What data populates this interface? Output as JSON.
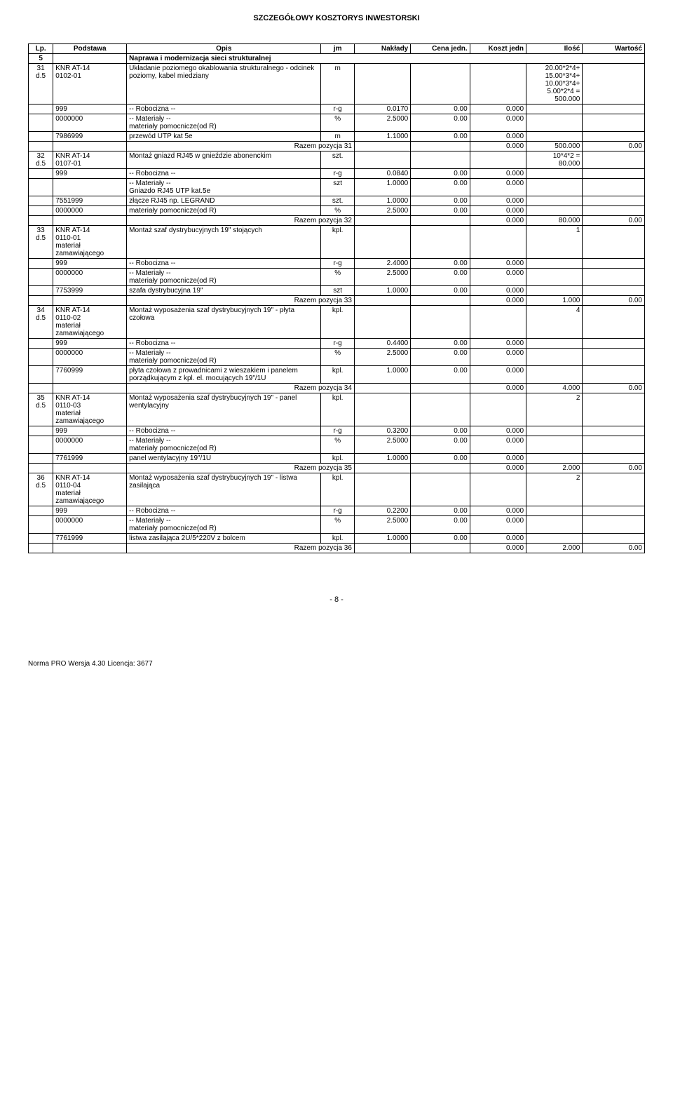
{
  "doc": {
    "title": "SZCZEGÓŁOWY KOSZTORYS INWESTORSKI",
    "page": "- 8 -",
    "footer": "Norma PRO Wersja 4.30 Licencja: 3677"
  },
  "header": {
    "lp": "Lp.",
    "pod": "Podstawa",
    "opis": "Opis",
    "jm": "jm",
    "nak": "Nakłady",
    "cena": "Cena jedn.",
    "koszt": "Koszt jedn",
    "ilosc": "Ilość",
    "wart": "Wartość"
  },
  "section": {
    "lp": "5",
    "opis": "Naprawa i modernizacja sieci strukturalnej"
  },
  "r31": {
    "lp": "31\nd.5",
    "pod": "KNR AT-14\n0102-01",
    "opis": "Układanie poziomego okablowania strukturalnego - odcinek poziomy, kabel miedziany",
    "jm": "m",
    "ilosc": "20.00*2*4+\n15.00*3*4+\n10.00*3*4+\n5.00*2*4 =\n500.000",
    "rob": "-- Robocizna --",
    "l999": "999",
    "rg": "r-g",
    "rgv": "0.0170",
    "rgc": "0.00",
    "rgk": "0.000",
    "mat": "-- Materiały --",
    "m1c": "0000000",
    "m1o": "materiały pomocnicze(od R)",
    "m1j": "%",
    "m1n": "2.5000",
    "m1p": "0.00",
    "m1k": "0.000",
    "m2c": "7986999",
    "m2o": "przewód UTP kat 5e",
    "m2j": "m",
    "m2n": "1.1000",
    "m2p": "0.00",
    "m2k": "0.000",
    "raz": "Razem pozycja 31",
    "razk": "0.000",
    "razi": "500.000",
    "razw": "0.00"
  },
  "r32": {
    "lp": "32\nd.5",
    "pod": "KNR AT-14\n0107-01",
    "opis": "Montaż gniazd RJ45 w gnieździe abonenckim",
    "jm": "szt.",
    "ilosc": "10*4*2 =\n80.000",
    "rob": "-- Robocizna --",
    "l999": "999",
    "rg": "r-g",
    "rgv": "0.0840",
    "rgc": "0.00",
    "rgk": "0.000",
    "mat": "-- Materiały --",
    "m0o": "Gniazdo RJ45 UTP kat.5e",
    "m0j": "szt",
    "m0n": "1.0000",
    "m0p": "0.00",
    "m0k": "0.000",
    "m1c": "7551999",
    "m1o": "złącze RJ45 np. LEGRAND",
    "m1j": "szt.",
    "m1n": "1.0000",
    "m1p": "0.00",
    "m1k": "0.000",
    "m2c": "0000000",
    "m2o": "materiały pomocnicze(od R)",
    "m2j": "%",
    "m2n": "2.5000",
    "m2p": "0.00",
    "m2k": "0.000",
    "raz": "Razem pozycja 32",
    "razk": "0.000",
    "razi": "80.000",
    "razw": "0.00"
  },
  "r33": {
    "lp": "33\nd.5",
    "pod": "KNR AT-14\n0110-01\nmateriał zamawiającego",
    "opis": "Montaż szaf dystrybucyjnych 19\" stojących",
    "jm": "kpl.",
    "ilosc": "1",
    "rob": "-- Robocizna --",
    "l999": "999",
    "rg": "r-g",
    "rgv": "2.4000",
    "rgc": "0.00",
    "rgk": "0.000",
    "mat": "-- Materiały --",
    "m1c": "0000000",
    "m1o": "materiały pomocnicze(od R)",
    "m1j": "%",
    "m1n": "2.5000",
    "m1p": "0.00",
    "m1k": "0.000",
    "m2c": "7753999",
    "m2o": "szafa dystrybucyjna 19\"",
    "m2j": "szt",
    "m2n": "1.0000",
    "m2p": "0.00",
    "m2k": "0.000",
    "raz": "Razem pozycja 33",
    "razk": "0.000",
    "razi": "1.000",
    "razw": "0.00"
  },
  "r34": {
    "lp": "34\nd.5",
    "pod": "KNR AT-14\n0110-02\nmateriał zamawiającego",
    "opis": "Montaż wyposażenia szaf dystrybucyjnych 19\" - płyta czołowa",
    "jm": "kpl.",
    "ilosc": "4",
    "rob": "-- Robocizna --",
    "l999": "999",
    "rg": "r-g",
    "rgv": "0.4400",
    "rgc": "0.00",
    "rgk": "0.000",
    "mat": "-- Materiały --",
    "m1c": "0000000",
    "m1o": "materiały pomocnicze(od R)",
    "m1j": "%",
    "m1n": "2.5000",
    "m1p": "0.00",
    "m1k": "0.000",
    "m2c": "7760999",
    "m2o": "płyta czołowa z prowadnicami z wieszakiem i panelem porządkującym z kpl. el. mocujących 19\"/1U",
    "m2j": "kpl.",
    "m2n": "1.0000",
    "m2p": "0.00",
    "m2k": "0.000",
    "raz": "Razem pozycja 34",
    "razk": "0.000",
    "razi": "4.000",
    "razw": "0.00"
  },
  "r35": {
    "lp": "35\nd.5",
    "pod": "KNR AT-14\n0110-03\nmateriał zamawiającego",
    "opis": "Montaż wyposażenia szaf dystrybucyjnych 19\" - panel wentylacyjny",
    "jm": "kpl.",
    "ilosc": "2",
    "rob": "-- Robocizna --",
    "l999": "999",
    "rg": "r-g",
    "rgv": "0.3200",
    "rgc": "0.00",
    "rgk": "0.000",
    "mat": "-- Materiały --",
    "m1c": "0000000",
    "m1o": "materiały pomocnicze(od R)",
    "m1j": "%",
    "m1n": "2.5000",
    "m1p": "0.00",
    "m1k": "0.000",
    "m2c": "7761999",
    "m2o": "panel wentylacyjny 19\"/1U",
    "m2j": "kpl.",
    "m2n": "1.0000",
    "m2p": "0.00",
    "m2k": "0.000",
    "raz": "Razem pozycja 35",
    "razk": "0.000",
    "razi": "2.000",
    "razw": "0.00"
  },
  "r36": {
    "lp": "36\nd.5",
    "pod": "KNR AT-14\n0110-04\nmateriał zamawiającego",
    "opis": "Montaż wyposażenia szaf dystrybucyjnych 19\" - listwa zasilająca",
    "jm": "kpl.",
    "ilosc": "2",
    "rob": "-- Robocizna --",
    "l999": "999",
    "rg": "r-g",
    "rgv": "0.2200",
    "rgc": "0.00",
    "rgk": "0.000",
    "mat": "-- Materiały --",
    "m1c": "0000000",
    "m1o": "materiały pomocnicze(od R)",
    "m1j": "%",
    "m1n": "2.5000",
    "m1p": "0.00",
    "m1k": "0.000",
    "m2c": "7761999",
    "m2o": "listwa zasilająca 2U/5*220V z bolcem",
    "m2j": "kpl.",
    "m2n": "1.0000",
    "m2p": "0.00",
    "m2k": "0.000",
    "raz": "Razem pozycja 36",
    "razk": "0.000",
    "razi": "2.000",
    "razw": "0.00"
  }
}
